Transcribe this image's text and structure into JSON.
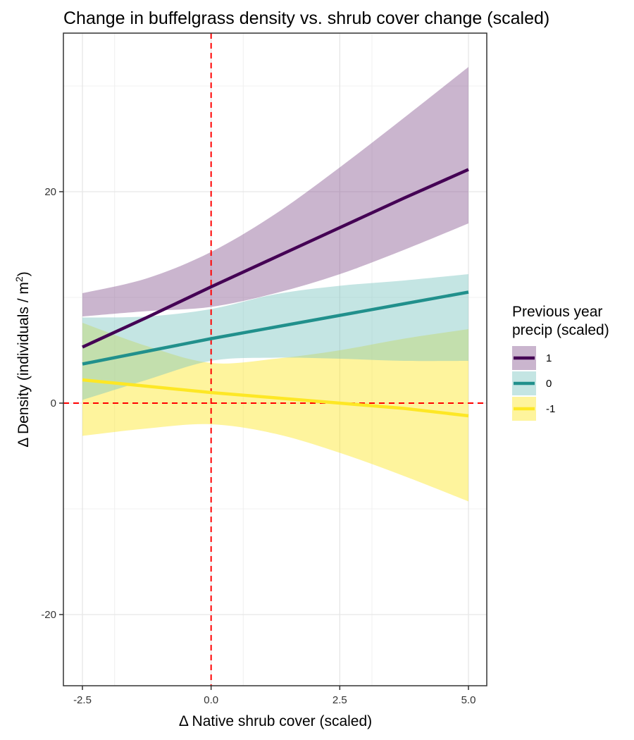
{
  "chart_data": {
    "type": "line",
    "title": "Change in buffelgrass density vs. shrub cover change (scaled)",
    "xlabel": "Δ Native shrub cover (scaled)",
    "ylabel_main": "Δ Density (individuals / m",
    "ylabel_sup": "2",
    "ylabel_end": ")",
    "xlim": [
      -2.5,
      5.0
    ],
    "ylim": [
      -26.5,
      36.3
    ],
    "x_ticks": [
      -2.5,
      0.0,
      2.5,
      5.0
    ],
    "x_tick_labels": [
      "-2.5",
      "0.0",
      "2.5",
      "5.0"
    ],
    "y_ticks": [
      -20,
      0,
      20
    ],
    "y_tick_labels": [
      "-20",
      "0",
      "20"
    ],
    "grid": true,
    "reference_lines": {
      "x": 0,
      "y": 0,
      "color": "#ff0000",
      "style": "dashed"
    },
    "legend": {
      "title_line1": "Previous year",
      "title_line2": "precip (scaled)",
      "position": "right"
    },
    "series": [
      {
        "name": "1",
        "color": "#440154",
        "ribbon_color": "#8a5a93",
        "x": [
          -2.5,
          -1.25,
          0,
          1.25,
          2.5,
          3.75,
          5.0
        ],
        "y": [
          5.3,
          8.1,
          11.0,
          13.8,
          16.6,
          19.4,
          22.1
        ],
        "lower": [
          8.2,
          8.7,
          9.1,
          10.4,
          12.2,
          14.5,
          17.0
        ],
        "upper": [
          10.4,
          11.8,
          14.3,
          17.9,
          22.3,
          27.0,
          31.8
        ]
      },
      {
        "name": "0",
        "color": "#21908c",
        "ribbon_color": "#7cc6c1",
        "x": [
          -2.5,
          -1.25,
          0,
          1.25,
          2.5,
          3.75,
          5.0
        ],
        "y": [
          3.7,
          4.9,
          6.1,
          7.2,
          8.3,
          9.4,
          10.5
        ],
        "lower": [
          0.3,
          2.2,
          4.0,
          4.3,
          4.2,
          4.0,
          4.0
        ],
        "upper": [
          8.1,
          8.2,
          8.9,
          10.3,
          11.1,
          11.6,
          12.2
        ]
      },
      {
        "name": "-1",
        "color": "#fde725",
        "ribbon_color": "#fde725",
        "x": [
          -2.5,
          -1.25,
          0,
          1.25,
          2.5,
          3.75,
          5.0
        ],
        "y": [
          2.2,
          1.6,
          1.0,
          0.5,
          0.0,
          -0.5,
          -1.2
        ],
        "lower": [
          -3.1,
          -2.4,
          -2.0,
          -2.9,
          -4.7,
          -6.9,
          -9.3
        ],
        "upper": [
          7.6,
          5.4,
          3.8,
          4.2,
          5.0,
          6.1,
          7.0
        ]
      }
    ]
  }
}
